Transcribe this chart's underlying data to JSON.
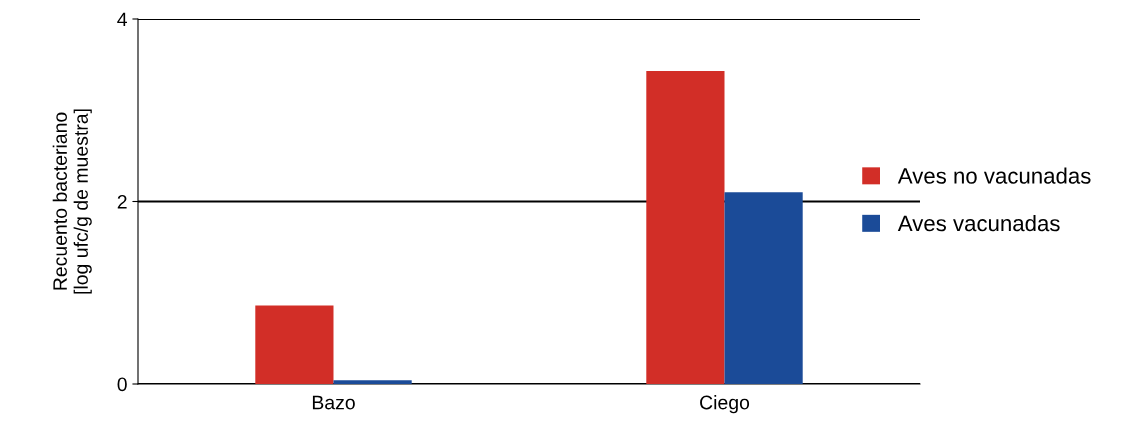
{
  "chart_data": {
    "type": "bar",
    "ylabel": "Recuento bacteriano\n[log ufc/g de muestra]",
    "categories": [
      "Bazo",
      "Ciego"
    ],
    "series": [
      {
        "name": "Aves no vacunadas",
        "color": "#d22e27",
        "values": [
          0.86,
          3.43
        ]
      },
      {
        "name": "Aves vacunadas",
        "color": "#1b4b98",
        "values": [
          0.04,
          2.1
        ]
      }
    ],
    "ylim": [
      0,
      4
    ],
    "yticks": [
      0,
      2,
      4
    ],
    "grid": "y",
    "legend": "right"
  }
}
